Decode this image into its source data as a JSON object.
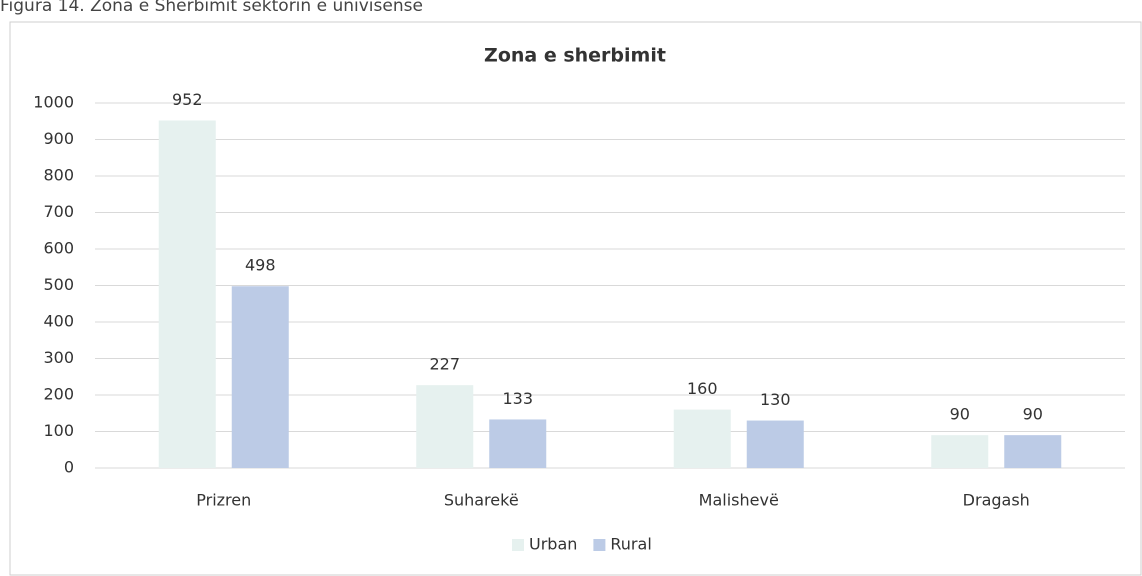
{
  "chart_data": {
    "type": "bar",
    "caption": "Figura 14. Zona e Sherbimit sektorin e univisense",
    "title": "Zona e sherbimit",
    "categories": [
      "Prizren",
      "Suharekë",
      "Malishevë",
      "Dragash"
    ],
    "series": [
      {
        "name": "Urban",
        "color": "#e6f1ef",
        "values": [
          952,
          227,
          160,
          90
        ]
      },
      {
        "name": "Rural",
        "color": "#bccbe6",
        "values": [
          498,
          133,
          130,
          90
        ]
      }
    ],
    "ylim": [
      0,
      1000
    ],
    "yticks": [
      0,
      100,
      200,
      300,
      400,
      500,
      600,
      700,
      800,
      900,
      1000
    ],
    "grid": true,
    "legend": "bottom",
    "data_labels": true
  }
}
